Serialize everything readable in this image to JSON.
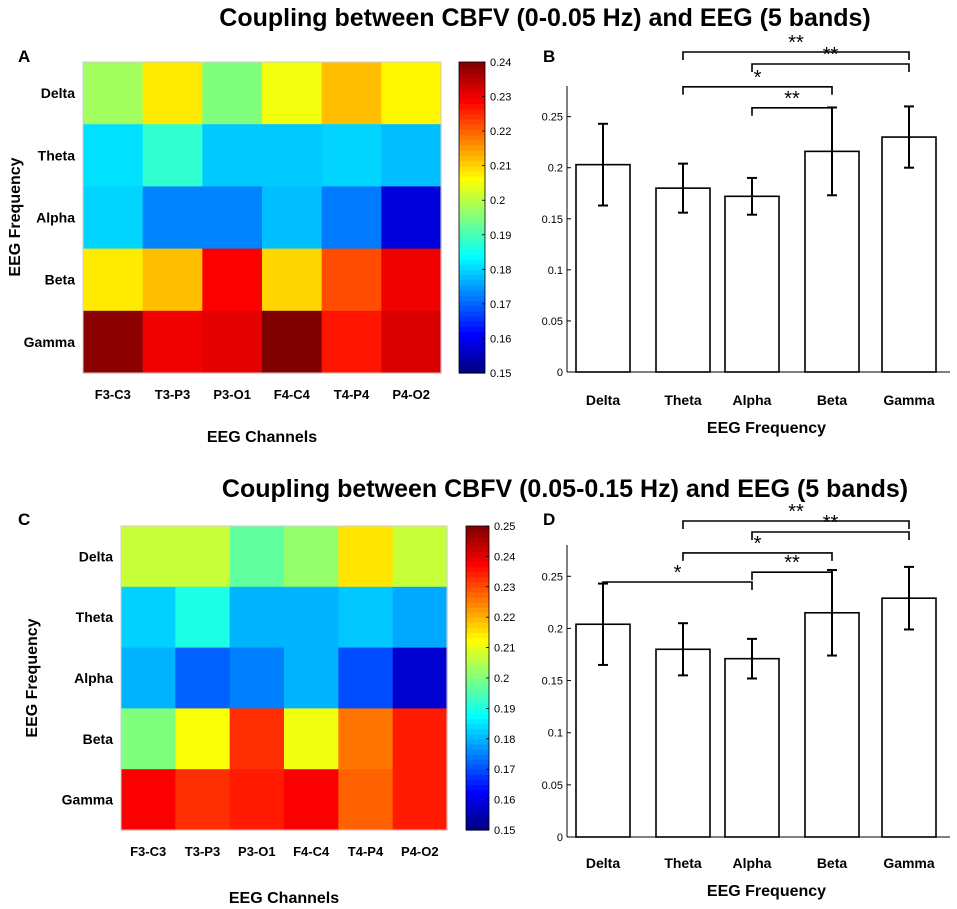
{
  "titles": {
    "top": "Coupling between CBFV (0-0.05 Hz) and EEG (5 bands)",
    "bottom": "Coupling between CBFV (0.05-0.15 Hz) and EEG (5 bands)"
  },
  "colors": {
    "bar_fill": "#ffffff",
    "bar_stroke": "#000000"
  },
  "chart_data": [
    {
      "panel": "A",
      "type": "heatmap",
      "ylabel": "EEG Frequency",
      "xlabel": "EEG Channels",
      "rows": [
        "Delta",
        "Theta",
        "Alpha",
        "Beta",
        "Gamma"
      ],
      "cols": [
        "F3-C3",
        "T3-P3",
        "P3-O1",
        "F4-C4",
        "T4-P4",
        "P4-O2"
      ],
      "values": [
        [
          0.198,
          0.208,
          0.195,
          0.205,
          0.212,
          0.207
        ],
        [
          0.181,
          0.188,
          0.179,
          0.179,
          0.18,
          0.178
        ],
        [
          0.18,
          0.173,
          0.173,
          0.178,
          0.172,
          0.158
        ],
        [
          0.208,
          0.212,
          0.229,
          0.21,
          0.222,
          0.23
        ],
        [
          0.239,
          0.23,
          0.231,
          0.24,
          0.227,
          0.232
        ]
      ],
      "clim": [
        0.15,
        0.24
      ],
      "colorbar_ticks": [
        "0.15",
        "0.16",
        "0.17",
        "0.18",
        "0.19",
        "0.2",
        "0.21",
        "0.22",
        "0.23",
        "0.24"
      ]
    },
    {
      "panel": "B",
      "type": "bar",
      "xlabel": "EEG Frequency",
      "ylabel": "",
      "categories": [
        "Delta",
        "Theta",
        "Alpha",
        "Beta",
        "Gamma"
      ],
      "values": [
        0.203,
        0.18,
        0.172,
        0.216,
        0.23
      ],
      "errors": [
        0.04,
        0.024,
        0.018,
        0.043,
        0.03
      ],
      "ylim": [
        0,
        0.28
      ],
      "yticks": [
        "0",
        "0.05",
        "0.1",
        "0.15",
        "0.2",
        "0.25"
      ],
      "significance": [
        {
          "from": "Theta",
          "to": "Gamma",
          "label": "**"
        },
        {
          "from": "Alpha",
          "to": "Gamma",
          "label": "**"
        },
        {
          "from": "Theta",
          "to": "Beta",
          "label": "*"
        },
        {
          "from": "Alpha",
          "to": "Beta",
          "label": "**"
        }
      ]
    },
    {
      "panel": "C",
      "type": "heatmap",
      "ylabel": "EEG Frequency",
      "xlabel": "EEG Channels",
      "rows": [
        "Delta",
        "Theta",
        "Alpha",
        "Beta",
        "Gamma"
      ],
      "cols": [
        "F3-C3",
        "T3-P3",
        "P3-O1",
        "F4-C4",
        "T4-P4",
        "P4-O2"
      ],
      "values": [
        [
          0.207,
          0.207,
          0.197,
          0.202,
          0.215,
          0.207
        ],
        [
          0.183,
          0.19,
          0.18,
          0.18,
          0.182,
          0.179
        ],
        [
          0.18,
          0.172,
          0.175,
          0.18,
          0.17,
          0.158
        ],
        [
          0.2,
          0.212,
          0.233,
          0.211,
          0.226,
          0.235
        ],
        [
          0.238,
          0.233,
          0.235,
          0.238,
          0.228,
          0.235
        ]
      ],
      "clim": [
        0.15,
        0.25
      ],
      "colorbar_ticks": [
        "0.15",
        "0.16",
        "0.17",
        "0.18",
        "0.19",
        "0.2",
        "0.21",
        "0.22",
        "0.23",
        "0.24",
        "0.25"
      ]
    },
    {
      "panel": "D",
      "type": "bar",
      "xlabel": "EEG Frequency",
      "ylabel": "",
      "categories": [
        "Delta",
        "Theta",
        "Alpha",
        "Beta",
        "Gamma"
      ],
      "values": [
        0.204,
        0.18,
        0.171,
        0.215,
        0.229
      ],
      "errors": [
        0.039,
        0.025,
        0.019,
        0.041,
        0.03
      ],
      "ylim": [
        0,
        0.28
      ],
      "yticks": [
        "0",
        "0.05",
        "0.1",
        "0.15",
        "0.2",
        "0.25"
      ],
      "significance": [
        {
          "from": "Theta",
          "to": "Gamma",
          "label": "**"
        },
        {
          "from": "Alpha",
          "to": "Gamma",
          "label": "**"
        },
        {
          "from": "Theta",
          "to": "Beta",
          "label": "*"
        },
        {
          "from": "Alpha",
          "to": "Beta",
          "label": "**"
        },
        {
          "from": "Delta",
          "to": "Alpha",
          "label": "*"
        }
      ]
    }
  ]
}
